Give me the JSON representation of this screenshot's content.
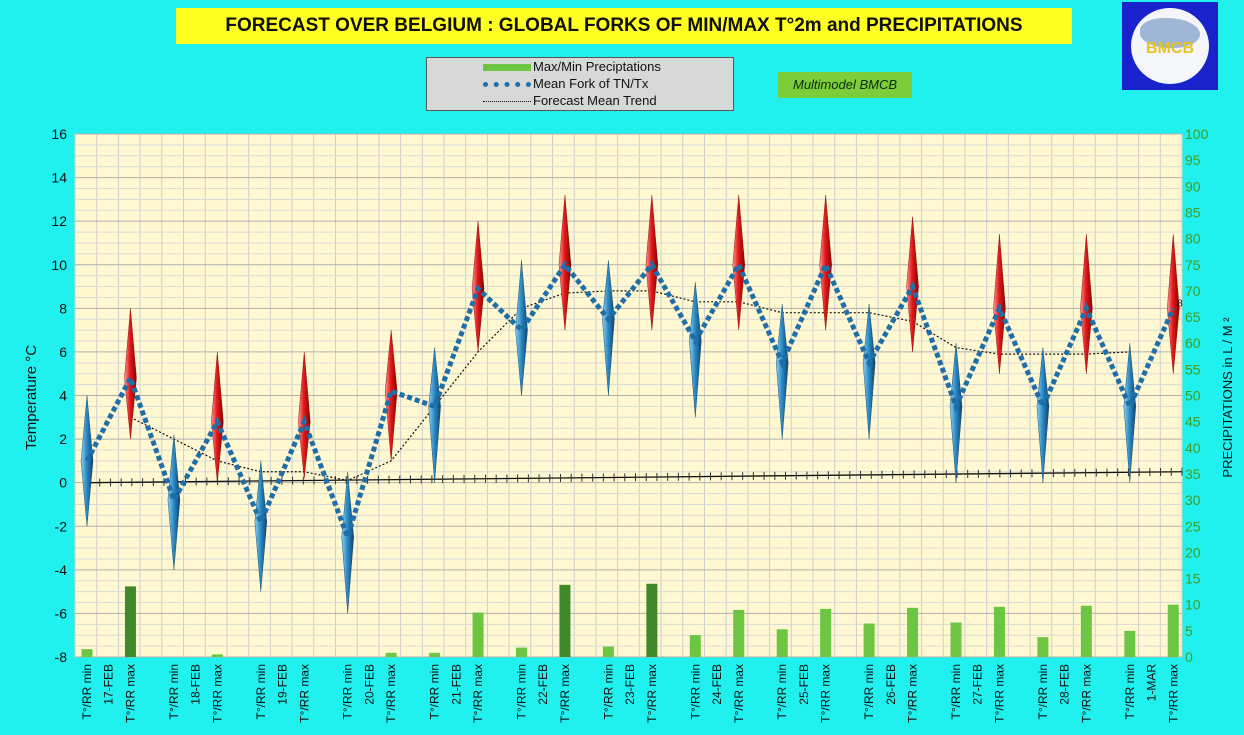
{
  "title": "FORECAST OVER BELGIUM : GLOBAL FORKS OF  MIN/MAX T°2m and PRECIPITATIONS",
  "logo_text": "BMCB",
  "legend": {
    "items": [
      {
        "label": "Max/Min Preciptations",
        "color": "#6cc644"
      },
      {
        "label": "Mean Fork of TN/Tx",
        "color": "#1f6ea8"
      },
      {
        "label": "Forecast Mean Trend",
        "color": "#111111"
      }
    ]
  },
  "model_label": "Multimodel BMCB",
  "chart_data": {
    "type": "line",
    "ylabel": "Temperature  °C",
    "y2label": "PRECIPITATIONS in L / M ²",
    "ylim": [
      -8,
      16
    ],
    "y2lim": [
      0,
      100
    ],
    "yticks": [
      "-8",
      "-6",
      "-4",
      "-2",
      "0",
      "2",
      "4",
      "6",
      "8",
      "10",
      "12",
      "14",
      "16"
    ],
    "y2ticks": [
      "0",
      "5",
      "10",
      "15",
      "20",
      "25",
      "30",
      "35",
      "40",
      "45",
      "50",
      "55",
      "60",
      "65",
      "70",
      "75",
      "80",
      "85",
      "90",
      "95",
      "100"
    ],
    "categories": [
      "T°/RR min",
      "17-FEB",
      "T°/RR max",
      "T°/RR min",
      "18-FEB",
      "T°/RR max",
      "T°/RR min",
      "19-FEB",
      "T°/RR max",
      "T°/RR min",
      "20-FEB",
      "T°/RR max",
      "T°/RR min",
      "21-FEB",
      "T°/RR max",
      "T°/RR min",
      "22-FEB",
      "T°/RR max",
      "T°/RR min",
      "23-FEB",
      "T°/RR max",
      "T°/RR min",
      "24-FEB",
      "T°/RR max",
      "T°/RR min",
      "25-FEB",
      "T°/RR max",
      "T°/RR min",
      "26-FEB",
      "T°/RR max",
      "T°/RR min",
      "27-FEB",
      "T°/RR max",
      "T°/RR min",
      "28-FEB",
      "T°/RR max",
      "T°/RR min",
      "1-MAR",
      "T°/RR max"
    ],
    "slots": [
      {
        "kind": "min",
        "mean": 1.0,
        "high": 4.0,
        "low": -2.0,
        "precip": 1.5,
        "trend": null
      },
      {
        "kind": "max",
        "mean": 4.8,
        "high": 8.0,
        "low": 2.0,
        "precip": 13.5,
        "trend": 3.0
      },
      {
        "kind": "min",
        "mean": -0.8,
        "high": 2.2,
        "low": -4.0,
        "precip": null,
        "trend": 2.0
      },
      {
        "kind": "max",
        "mean": 2.8,
        "high": 6.0,
        "low": 0.0,
        "precip": 0.5,
        "trend": 1.0
      },
      {
        "kind": "min",
        "mean": -1.8,
        "high": 1.0,
        "low": -5.0,
        "precip": null,
        "trend": 0.5
      },
      {
        "kind": "max",
        "mean": 2.8,
        "high": 6.0,
        "low": 0.2,
        "precip": null,
        "trend": 0.5
      },
      {
        "kind": "min",
        "mean": -2.5,
        "high": 0.5,
        "low": -6.0,
        "precip": null,
        "trend": 0.1
      },
      {
        "kind": "max",
        "mean": 4.2,
        "high": 7.0,
        "low": 1.0,
        "precip": 0.8,
        "trend": 1.0
      },
      {
        "kind": "min",
        "mean": 3.5,
        "high": 6.2,
        "low": 0.0,
        "precip": 0.8,
        "trend": 3.5
      },
      {
        "kind": "max",
        "mean": 8.9,
        "high": 12.0,
        "low": 6.0,
        "precip": 8.5,
        "trend": 6.0
      },
      {
        "kind": "min",
        "mean": 7.0,
        "high": 10.2,
        "low": 4.0,
        "precip": 1.8,
        "trend": 8.0
      },
      {
        "kind": "max",
        "mean": 10.0,
        "high": 13.2,
        "low": 7.0,
        "precip": 13.8,
        "trend": 8.7
      },
      {
        "kind": "min",
        "mean": 7.5,
        "high": 10.2,
        "low": 4.0,
        "precip": 2.0,
        "trend": 8.8
      },
      {
        "kind": "max",
        "mean": 10.0,
        "high": 13.2,
        "low": 7.0,
        "precip": 14.0,
        "trend": 8.8
      },
      {
        "kind": "min",
        "mean": 6.5,
        "high": 9.2,
        "low": 3.0,
        "precip": 4.2,
        "trend": 8.3
      },
      {
        "kind": "max",
        "mean": 10.0,
        "high": 13.2,
        "low": 7.0,
        "precip": 9.0,
        "trend": 8.3
      },
      {
        "kind": "min",
        "mean": 5.5,
        "high": 8.2,
        "low": 2.0,
        "precip": 5.3,
        "trend": 7.8
      },
      {
        "kind": "max",
        "mean": 10.0,
        "high": 13.2,
        "low": 7.0,
        "precip": 9.2,
        "trend": 7.8
      },
      {
        "kind": "min",
        "mean": 5.5,
        "high": 8.2,
        "low": 2.0,
        "precip": 6.4,
        "trend": 7.8
      },
      {
        "kind": "max",
        "mean": 9.0,
        "high": 12.2,
        "low": 6.0,
        "precip": 9.4,
        "trend": 7.4
      },
      {
        "kind": "min",
        "mean": 3.5,
        "high": 6.4,
        "low": 0.0,
        "precip": 6.6,
        "trend": 6.2
      },
      {
        "kind": "max",
        "mean": 8.0,
        "high": 11.4,
        "low": 5.0,
        "precip": 9.6,
        "trend": 5.9
      },
      {
        "kind": "min",
        "mean": 3.5,
        "high": 6.2,
        "low": 0.0,
        "precip": 3.8,
        "trend": 5.9
      },
      {
        "kind": "max",
        "mean": 8.0,
        "high": 11.4,
        "low": 5.0,
        "precip": 9.8,
        "trend": 5.9
      },
      {
        "kind": "min",
        "mean": 3.5,
        "high": 6.4,
        "low": 0.0,
        "precip": 5.0,
        "trend": 6.0
      },
      {
        "kind": "max",
        "mean": 8.0,
        "high": 11.4,
        "low": 5.0,
        "precip": 10.0,
        "trend": null
      }
    ],
    "base_line": [
      0.0,
      0.5
    ],
    "end_label": "8",
    "grid": true
  }
}
